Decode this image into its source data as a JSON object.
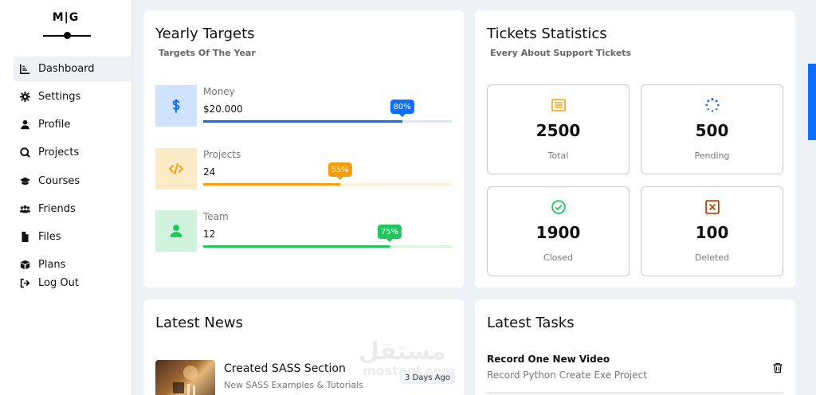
{
  "logo": {
    "text": "M|G"
  },
  "sidebar": {
    "items": [
      {
        "label": "Dashboard",
        "icon": "chart-line-icon"
      },
      {
        "label": "Settings",
        "icon": "gear-icon"
      },
      {
        "label": "Profile",
        "icon": "user-icon"
      },
      {
        "label": "Projects",
        "icon": "diagram-icon"
      },
      {
        "label": "Courses",
        "icon": "graduation-cap-icon"
      },
      {
        "label": "Friends",
        "icon": "users-icon"
      },
      {
        "label": "Files",
        "icon": "file-icon"
      },
      {
        "label": "Plans",
        "icon": "box-icon"
      },
      {
        "label": "Log Out",
        "icon": "sign-out-icon"
      }
    ],
    "active": "Dashboard"
  },
  "targets": {
    "title": "Yearly Targets",
    "subtitle": "Targets Of The Year",
    "items": [
      {
        "label": "Money",
        "value": "$20.000",
        "percent": "80%",
        "fraction": 0.8,
        "color": "#0d6efd",
        "bg": "#cfe2ff",
        "track": "#d6e6fb",
        "icon": "dollar-icon"
      },
      {
        "label": "Projects",
        "value": "24",
        "percent": "55%",
        "fraction": 0.55,
        "color": "#f59e0b",
        "bg": "#fdebc8",
        "track": "#fdf0d6",
        "icon": "code-icon"
      },
      {
        "label": "Team",
        "value": "12",
        "percent": "75%",
        "fraction": 0.75,
        "color": "#22c55e",
        "bg": "#d1f3dd",
        "track": "#d9f5e2",
        "icon": "user-icon"
      }
    ]
  },
  "tickets": {
    "title": "Tickets Statistics",
    "subtitle": "Every About Support Tickets",
    "items": [
      {
        "number": "2500",
        "label": "Total",
        "icon": "list-icon",
        "color": "#f59e0b"
      },
      {
        "number": "500",
        "label": "Pending",
        "icon": "spinner-icon",
        "color": "#0d6efd"
      },
      {
        "number": "1900",
        "label": "Closed",
        "icon": "check-circle-icon",
        "color": "#22c55e"
      },
      {
        "number": "100",
        "label": "Deleted",
        "icon": "x-square-icon",
        "color": "#c2410c"
      }
    ]
  },
  "news": {
    "title": "Latest News",
    "items": [
      {
        "title": "Created SASS Section",
        "desc": "New SASS Examples & Tutorials",
        "date": "3 Days Ago"
      }
    ],
    "watermark": "مستقل",
    "watermark_sub": "mostaql.com"
  },
  "tasks": {
    "title": "Latest Tasks",
    "items": [
      {
        "title": "Record One New Video",
        "desc": "Record Python Create Exe Project"
      }
    ]
  }
}
